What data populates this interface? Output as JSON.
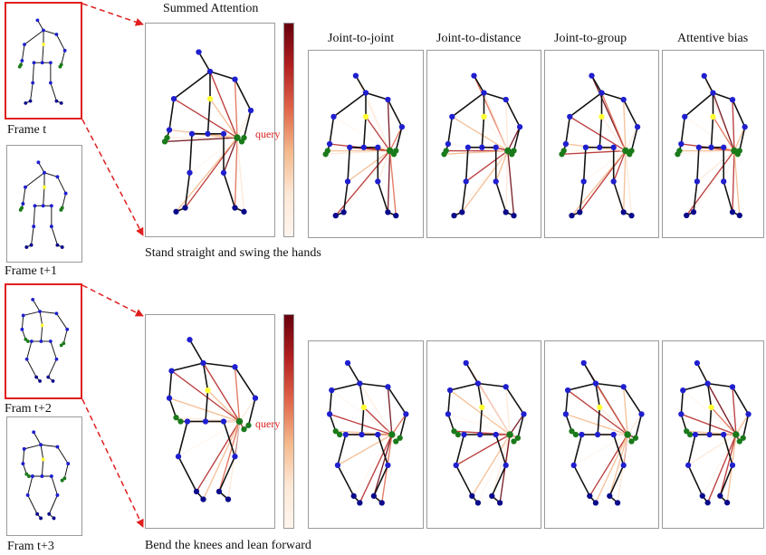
{
  "frames": [
    {
      "label": "Frame t"
    },
    {
      "label": "Frame t+1"
    },
    {
      "label": "Fram t+2"
    },
    {
      "label": "Fram t+3"
    }
  ],
  "headers": {
    "summed": "Summed Attention",
    "joint_to_joint": "Joint-to-joint",
    "joint_to_distance": "Joint-to-distance",
    "joint_to_group": "Joint-to-group",
    "attentive_bias": "Attentive bias"
  },
  "rows": [
    {
      "caption": "Stand straight and swing the hands",
      "query_label": "query"
    },
    {
      "caption": "Bend the knees and lean forward",
      "query_label": "query"
    }
  ],
  "colors": {
    "highlight": "#e01f1f",
    "joint": "#1f1fd0",
    "joint_dark": "#0a0a8a",
    "hand": "#1a7a1a",
    "spine": "#ffff33",
    "light_joint": "#9fd8e8",
    "bone": "#111111"
  },
  "colormap": [
    "#67000d",
    "#b22020",
    "#e0654a",
    "#f4b88a",
    "#fde8d6",
    "#fff5ee"
  ]
}
